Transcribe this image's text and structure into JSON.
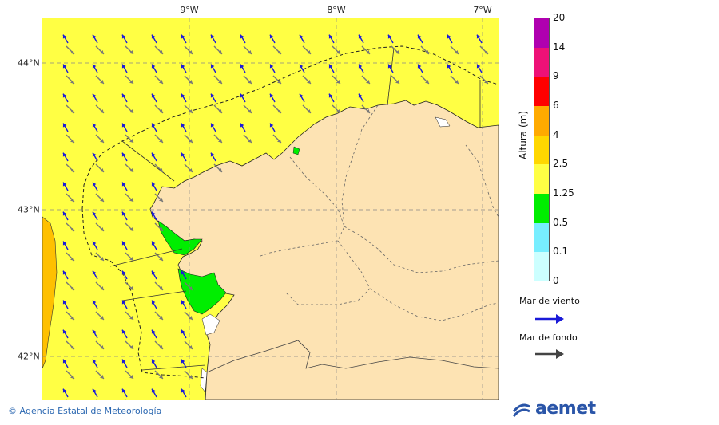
{
  "map": {
    "lon_labels": [
      "9°W",
      "8°W",
      "7°W"
    ],
    "lat_labels": [
      "44°N",
      "43°N",
      "42°N"
    ],
    "colors": {
      "sea_yellow": "#ffff44",
      "sea_orange": "#ffc000",
      "sea_green": "#00ee00",
      "land": "#fde3b3",
      "wind_arrow": "#1a1ad8",
      "swell_arrow": "#777777"
    },
    "field_description_levels": [
      "1.25-2.5",
      "2.5-4",
      "0.5-1.25"
    ]
  },
  "scale": {
    "title": "Altura (m)",
    "ticks": [
      "20",
      "14",
      "9",
      "6",
      "4",
      "2.5",
      "1.25",
      "0.5",
      "0.1",
      "0"
    ],
    "colors": [
      "#b000b0",
      "#ee1177",
      "#ff0000",
      "#ffaa00",
      "#ffd700",
      "#ffff44",
      "#00ee00",
      "#77eeff",
      "#ccffff"
    ]
  },
  "legend": {
    "wind_label": "Mar de viento",
    "swell_label": "Mar de fondo"
  },
  "footer": {
    "credit": "© Agencia Estatal de Meteorología",
    "logo_text": "aemet"
  }
}
